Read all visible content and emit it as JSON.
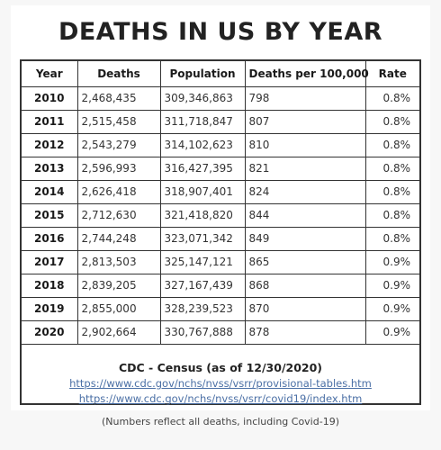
{
  "title": "DEATHS IN US BY YEAR",
  "table": {
    "headers": [
      "Year",
      "Deaths",
      "Population",
      "Deaths per 100,000",
      "Rate"
    ],
    "rows": [
      {
        "year": "2010",
        "deaths": "2,468,435",
        "population": "309,346,863",
        "per100k": "798",
        "rate": "0.8%"
      },
      {
        "year": "2011",
        "deaths": "2,515,458",
        "population": "311,718,847",
        "per100k": "807",
        "rate": "0.8%"
      },
      {
        "year": "2012",
        "deaths": "2,543,279",
        "population": "314,102,623",
        "per100k": "810",
        "rate": "0.8%"
      },
      {
        "year": "2013",
        "deaths": "2,596,993",
        "population": "316,427,395",
        "per100k": "821",
        "rate": "0.8%"
      },
      {
        "year": "2014",
        "deaths": "2,626,418",
        "population": "318,907,401",
        "per100k": "824",
        "rate": "0.8%"
      },
      {
        "year": "2015",
        "deaths": "2,712,630",
        "population": "321,418,820",
        "per100k": "844",
        "rate": "0.8%"
      },
      {
        "year": "2016",
        "deaths": "2,744,248",
        "population": "323,071,342",
        "per100k": "849",
        "rate": "0.8%"
      },
      {
        "year": "2017",
        "deaths": "2,813,503",
        "population": "325,147,121",
        "per100k": "865",
        "rate": "0.9%"
      },
      {
        "year": "2018",
        "deaths": "2,839,205",
        "population": "327,167,439",
        "per100k": "868",
        "rate": "0.9%"
      },
      {
        "year": "2019",
        "deaths": "2,855,000",
        "population": "328,239,523",
        "per100k": "870",
        "rate": "0.9%"
      },
      {
        "year": "2020",
        "deaths": "2,902,664",
        "population": "330,767,888",
        "per100k": "878",
        "rate": "0.9%"
      }
    ]
  },
  "source": {
    "title": "CDC - Census (as of 12/30/2020)",
    "links": [
      "https://www.cdc.gov/nchs/nvss/vsrr/provisional-tables.htm",
      "https://www.cdc.gov/nchs/nvss/vsrr/covid19/index.htm"
    ]
  },
  "footnote": "(Numbers reflect all deaths, including Covid-19)",
  "colors": {
    "link": "#4a6fa5",
    "border": "#333333",
    "background": "#f7f7f7"
  }
}
